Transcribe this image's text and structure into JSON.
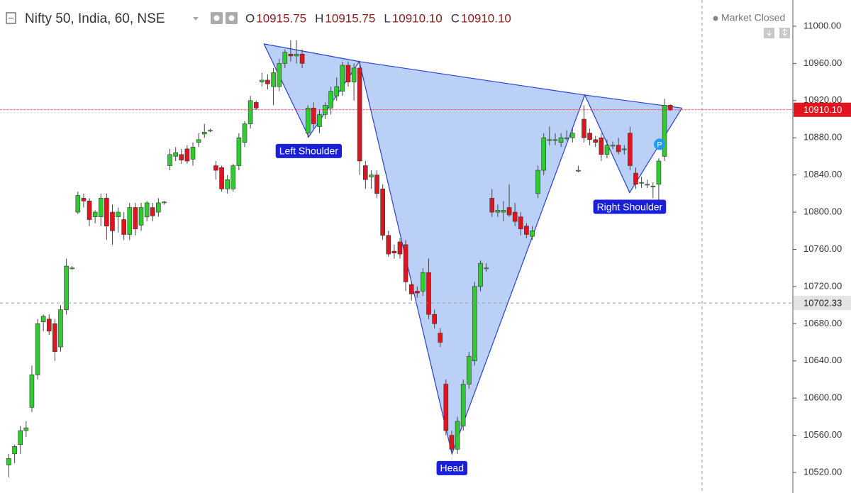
{
  "chart_data": {
    "type": "candlestick",
    "symbol": "Nifty 50, India, 60, NSE",
    "legend_values": [
      {
        "label": "O",
        "value": "10915.75"
      },
      {
        "label": "H",
        "value": "10915.75"
      },
      {
        "label": "L",
        "value": "10910.10"
      },
      {
        "label": "C",
        "value": "10910.10"
      }
    ],
    "status": "Market Closed",
    "up_color": "#2ecc2e",
    "down_color": "#e0141e",
    "ylim": [
      10497.9,
      11028.2
    ],
    "yticks": [
      {
        "value": 10520,
        "label": "10520.00"
      },
      {
        "value": 10560,
        "label": "10560.00"
      },
      {
        "value": 10600,
        "label": "10600.00"
      },
      {
        "value": 10640,
        "label": "10640.00"
      },
      {
        "value": 10680,
        "label": "10680.00"
      },
      {
        "value": 10720,
        "label": "10720.00"
      },
      {
        "value": 10760,
        "label": "10760.00"
      },
      {
        "value": 10800,
        "label": "10800.00"
      },
      {
        "value": 10840,
        "label": "10840.00"
      },
      {
        "value": 10880,
        "label": "10880.00"
      },
      {
        "value": 10920,
        "label": "10920.00"
      },
      {
        "value": 10960,
        "label": "10960.00"
      },
      {
        "value": 11000,
        "label": "11000.00"
      }
    ],
    "last_price": {
      "value": 10910.1,
      "label": "10910.10"
    },
    "crosshair": {
      "value": 10702.33,
      "label": "10702.33"
    },
    "ohlc": [
      [
        10528,
        10540,
        10515,
        10535
      ],
      [
        10540,
        10550,
        10530,
        10548
      ],
      [
        10550,
        10570,
        10540,
        10565
      ],
      [
        10565,
        10575,
        10558,
        10568
      ],
      [
        10590,
        10635,
        10585,
        10625
      ],
      [
        10625,
        10685,
        10620,
        10680
      ],
      [
        10682,
        10690,
        10672,
        10688
      ],
      [
        10685,
        10690,
        10668,
        10672
      ],
      [
        10680,
        10685,
        10640,
        10650
      ],
      [
        10655,
        10700,
        10650,
        10695
      ],
      [
        10695,
        10750,
        10690,
        10742
      ],
      [
        10740,
        10742,
        10738,
        10740
      ],
      [
        10800,
        10822,
        10798,
        10818
      ],
      [
        10815,
        10820,
        10805,
        10812
      ],
      [
        10812,
        10815,
        10785,
        10792
      ],
      [
        10795,
        10802,
        10788,
        10800
      ],
      [
        10795,
        10820,
        10785,
        10815
      ],
      [
        10815,
        10820,
        10770,
        10785
      ],
      [
        10800,
        10808,
        10765,
        10780
      ],
      [
        10795,
        10805,
        10778,
        10800
      ],
      [
        10792,
        10800,
        10770,
        10776
      ],
      [
        10776,
        10810,
        10770,
        10805
      ],
      [
        10805,
        10810,
        10775,
        10782
      ],
      [
        10786,
        10810,
        10780,
        10805
      ],
      [
        10795,
        10812,
        10790,
        10810
      ],
      [
        10805,
        10810,
        10790,
        10796
      ],
      [
        10800,
        10815,
        10795,
        10810
      ],
      [
        10810,
        10812,
        10808,
        10811
      ],
      [
        10850,
        10868,
        10845,
        10862
      ],
      [
        10860,
        10870,
        10855,
        10864
      ],
      [
        10862,
        10868,
        10852,
        10856
      ],
      [
        10868,
        10872,
        10852,
        10855
      ],
      [
        10857,
        10875,
        10850,
        10870
      ],
      [
        10875,
        10885,
        10870,
        10878
      ],
      [
        10884,
        10895,
        10880,
        10886
      ],
      [
        10888,
        10890,
        10886,
        10888
      ],
      [
        10850,
        10855,
        10835,
        10845
      ],
      [
        10848,
        10850,
        10822,
        10825
      ],
      [
        10825,
        10840,
        10820,
        10835
      ],
      [
        10825,
        10852,
        10822,
        10850
      ],
      [
        10850,
        10885,
        10845,
        10880
      ],
      [
        10875,
        10898,
        10870,
        10895
      ],
      [
        10895,
        10925,
        10890,
        10920
      ],
      [
        10918,
        10920,
        10910,
        10912
      ],
      [
        10940,
        10950,
        10935,
        10942
      ],
      [
        10942,
        10948,
        10932,
        10938
      ],
      [
        10935,
        10955,
        10915,
        10950
      ],
      [
        10935,
        10965,
        10930,
        10960
      ],
      [
        10960,
        10975,
        10955,
        10972
      ],
      [
        10970,
        10985,
        10962,
        10968
      ],
      [
        10968,
        10985,
        10960,
        10970
      ],
      [
        10970,
        10975,
        10955,
        10960
      ],
      [
        10885,
        10915,
        10880,
        10912
      ],
      [
        10912,
        10918,
        10890,
        10895
      ],
      [
        10892,
        10910,
        10885,
        10905
      ],
      [
        10905,
        10918,
        10900,
        10915
      ],
      [
        10912,
        10935,
        10905,
        10930
      ],
      [
        10925,
        10945,
        10920,
        10935
      ],
      [
        10930,
        10962,
        10925,
        10958
      ],
      [
        10958,
        10962,
        10935,
        10940
      ],
      [
        10940,
        10960,
        10920,
        10955
      ],
      [
        10955,
        10962,
        10840,
        10855
      ],
      [
        10850,
        10855,
        10825,
        10835
      ],
      [
        10838,
        10845,
        10825,
        10840
      ],
      [
        10840,
        10845,
        10815,
        10820
      ],
      [
        10825,
        10830,
        10770,
        10775
      ],
      [
        10775,
        10780,
        10752,
        10755
      ],
      [
        10758,
        10765,
        10750,
        10756
      ],
      [
        10768,
        10772,
        10750,
        10755
      ],
      [
        10765,
        10770,
        10715,
        10725
      ],
      [
        10722,
        10725,
        10705,
        10712
      ],
      [
        10715,
        10720,
        10708,
        10713
      ],
      [
        10715,
        10740,
        10710,
        10735
      ],
      [
        10735,
        10750,
        10685,
        10690
      ],
      [
        10690,
        10695,
        10675,
        10680
      ],
      [
        10670,
        10675,
        10655,
        10660
      ],
      [
        10615,
        10620,
        10560,
        10565
      ],
      [
        10560,
        10565,
        10540,
        10545
      ],
      [
        10545,
        10580,
        10540,
        10575
      ],
      [
        10570,
        10620,
        10565,
        10615
      ],
      [
        10615,
        10650,
        10610,
        10645
      ],
      [
        10640,
        10725,
        10635,
        10720
      ],
      [
        10720,
        10748,
        10715,
        10745
      ],
      [
        10740,
        10745,
        10736,
        10740
      ],
      [
        10815,
        10825,
        10795,
        10800
      ],
      [
        10800,
        10808,
        10795,
        10802
      ],
      [
        10800,
        10812,
        10790,
        10802
      ],
      [
        10805,
        10830,
        10795,
        10797
      ],
      [
        10800,
        10810,
        10785,
        10790
      ],
      [
        10795,
        10800,
        10775,
        10782
      ],
      [
        10785,
        10788,
        10772,
        10776
      ],
      [
        10774,
        10785,
        10770,
        10780
      ],
      [
        10820,
        10850,
        10815,
        10845
      ],
      [
        10845,
        10885,
        10840,
        10880
      ],
      [
        10878,
        10892,
        10872,
        10878
      ],
      [
        10878,
        10885,
        10872,
        10878
      ],
      [
        10875,
        10885,
        10870,
        10880
      ],
      [
        10880,
        10888,
        10877,
        10880
      ],
      [
        10880,
        10890,
        10875,
        10885
      ],
      [
        10845,
        10850,
        10843,
        10845
      ],
      [
        10900,
        10915,
        10875,
        10880
      ],
      [
        10885,
        10890,
        10872,
        10878
      ],
      [
        10878,
        10882,
        10870,
        10875
      ],
      [
        10880,
        10885,
        10855,
        10862
      ],
      [
        10862,
        10878,
        10858,
        10872
      ],
      [
        10872,
        10876,
        10868,
        10872
      ],
      [
        10872,
        10880,
        10862,
        10865
      ],
      [
        10868,
        10872,
        10862,
        10868
      ],
      [
        10885,
        10892,
        10845,
        10850
      ],
      [
        10842,
        10848,
        10825,
        10830
      ],
      [
        10832,
        10838,
        10826,
        10832
      ],
      [
        10830,
        10835,
        10826,
        10830
      ],
      [
        10828,
        10832,
        10815,
        10828
      ],
      [
        10830,
        10858,
        10812,
        10855
      ],
      [
        10860,
        10922,
        10855,
        10915
      ],
      [
        10915,
        10916,
        10909,
        10910
      ]
    ],
    "pattern": {
      "color": "#2a3fd6",
      "fill": "#b6cdf5",
      "x": [
        44.4,
        52.2,
        61,
        77.1,
        100.2,
        108,
        117.1
      ],
      "y": [
        10981,
        10881,
        10962,
        10540,
        10926,
        10821,
        10912
      ],
      "labels": [
        "Left Shoulder",
        "Head",
        "Right Shoulder"
      ]
    },
    "marker": {
      "text": "P",
      "x": 113.2,
      "y": 10873
    }
  }
}
